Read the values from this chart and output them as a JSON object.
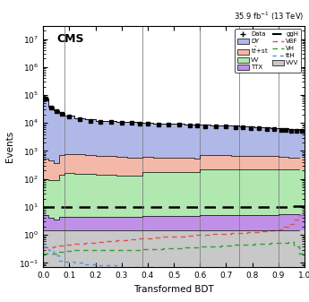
{
  "title_top": "35.9 fb$^{-1}$ (13 TeV)",
  "cms_label": "CMS",
  "xlabel": "Transformed BDT",
  "ylabel": "Events",
  "xlim": [
    0,
    1.0
  ],
  "ylim_log": [
    0.07,
    30000000.0
  ],
  "vertical_lines": [
    0.08,
    0.38,
    0.6,
    0.75,
    0.9
  ],
  "bin_edges": [
    0.0,
    0.02,
    0.04,
    0.06,
    0.08,
    0.12,
    0.16,
    0.2,
    0.24,
    0.28,
    0.32,
    0.36,
    0.38,
    0.42,
    0.46,
    0.5,
    0.54,
    0.58,
    0.6,
    0.64,
    0.68,
    0.72,
    0.75,
    0.78,
    0.81,
    0.84,
    0.87,
    0.9,
    0.92,
    0.94,
    0.96,
    0.98,
    1.0
  ],
  "DY": {
    "color": "#b0b8e8",
    "label": "DY",
    "values": [
      75000,
      38000,
      28000,
      22000,
      17000,
      14000,
      12500,
      11500,
      11000,
      10500,
      10200,
      9800,
      9500,
      9200,
      8900,
      8600,
      8300,
      8100,
      7900,
      7700,
      7500,
      7200,
      7000,
      6800,
      6600,
      6400,
      6100,
      5900,
      5700,
      5500,
      5300,
      5200
    ]
  },
  "ttst": {
    "color": "#f4b8a8",
    "label": "t$\\bar{t}$+st",
    "values": [
      450,
      350,
      280,
      550,
      620,
      600,
      570,
      540,
      510,
      480,
      460,
      440,
      430,
      415,
      400,
      390,
      380,
      370,
      500,
      490,
      480,
      470,
      460,
      450,
      440,
      430,
      420,
      400,
      385,
      370,
      355,
      340
    ]
  },
  "VV": {
    "color": "#b0e8b0",
    "label": "VV",
    "values": [
      90,
      90,
      90,
      140,
      155,
      150,
      145,
      140,
      135,
      130,
      128,
      126,
      170,
      170,
      170,
      170,
      170,
      170,
      210,
      210,
      210,
      210,
      220,
      220,
      220,
      220,
      220,
      220,
      220,
      220,
      220,
      220
    ]
  },
  "TTX": {
    "color": "#c090e8",
    "label": "TTX",
    "values": [
      3.5,
      2.5,
      2.0,
      2.8,
      3.0,
      3.0,
      3.0,
      3.0,
      3.0,
      3.0,
      3.0,
      3.0,
      3.2,
      3.2,
      3.2,
      3.2,
      3.2,
      3.2,
      3.5,
      3.5,
      3.5,
      3.5,
      3.8,
      3.8,
      3.8,
      3.8,
      3.8,
      4.0,
      4.0,
      4.0,
      4.0,
      4.0
    ]
  },
  "VVV": {
    "color": "#c8c8c8",
    "label": "VVV",
    "values": [
      1.5,
      1.5,
      1.5,
      1.5,
      1.5,
      1.5,
      1.5,
      1.5,
      1.5,
      1.5,
      1.5,
      1.5,
      1.5,
      1.5,
      1.5,
      1.5,
      1.5,
      1.5,
      1.5,
      1.5,
      1.5,
      1.5,
      1.5,
      1.5,
      1.5,
      1.5,
      1.5,
      1.5,
      1.5,
      1.5,
      1.5,
      1.5
    ]
  },
  "ggH": {
    "color": "#000000",
    "label": "ggH",
    "values": [
      10,
      10,
      10,
      10,
      10,
      10,
      10,
      10,
      10,
      10,
      10,
      10,
      10,
      10,
      10,
      10,
      10,
      10,
      10,
      10,
      10,
      10,
      10,
      10,
      10,
      10,
      10,
      10,
      10,
      10,
      11,
      11
    ]
  },
  "VBF": {
    "color": "#e05050",
    "label": "VBF",
    "values": [
      0.35,
      0.36,
      0.38,
      0.42,
      0.46,
      0.5,
      0.54,
      0.58,
      0.62,
      0.66,
      0.7,
      0.74,
      0.78,
      0.82,
      0.86,
      0.9,
      0.94,
      0.98,
      1.02,
      1.06,
      1.1,
      1.14,
      1.18,
      1.22,
      1.28,
      1.35,
      1.45,
      1.6,
      1.9,
      2.4,
      3.5,
      5.0
    ]
  },
  "VH": {
    "color": "#30a030",
    "label": "VH",
    "values": [
      0.22,
      0.22,
      0.22,
      0.25,
      0.27,
      0.28,
      0.29,
      0.3,
      0.3,
      0.3,
      0.3,
      0.3,
      0.32,
      0.32,
      0.34,
      0.34,
      0.36,
      0.36,
      0.38,
      0.4,
      0.42,
      0.44,
      0.46,
      0.46,
      0.48,
      0.5,
      0.52,
      0.52,
      0.54,
      0.55,
      0.38,
      0.22
    ]
  },
  "ttH": {
    "color": "#5090e0",
    "label": "ttH",
    "values": [
      0.38,
      0.28,
      0.18,
      0.12,
      0.11,
      0.1,
      0.09,
      0.08,
      0.08,
      0.07,
      0.07,
      0.07,
      0.07,
      0.06,
      0.06,
      0.06,
      0.06,
      0.06,
      0.05,
      0.05,
      0.05,
      0.05,
      0.04,
      0.04,
      0.04,
      0.04,
      0.04,
      0.04,
      0.04,
      0.04,
      0.04,
      0.04
    ]
  },
  "data_values": [
    75000,
    36000,
    27000,
    21000,
    16500,
    13800,
    12200,
    11300,
    10800,
    10300,
    10100,
    9700,
    9400,
    9100,
    8800,
    8500,
    8200,
    8000,
    7800,
    7600,
    7400,
    7100,
    6900,
    6700,
    6500,
    6300,
    6000,
    5800,
    5600,
    5400,
    5200,
    5100
  ]
}
